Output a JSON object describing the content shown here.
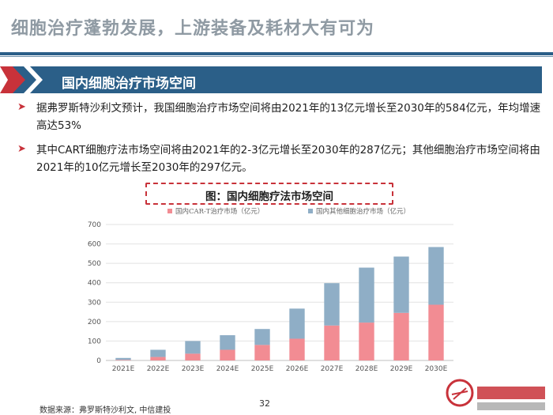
{
  "slide": {
    "title": "细胞治疗蓬勃发展，上游装备及耗材大有可为",
    "section": "国内细胞治疗市场空间",
    "bullets": [
      "据弗罗斯特沙利文预计，我国细胞治疗市场空间将由2021年的13亿元增长至2030年的584亿元，年均增速高达53%",
      "其中CART细胞疗法市场空间将由2021年的2-3亿元增长至2030年的287亿元；其他细胞治疗市场空间将由2021年的10亿元增长至2030年的297亿元。"
    ],
    "figure_title": "图：国内细胞疗法市场空间",
    "source": "数据来源：弗罗斯特沙利文, 中信建投",
    "page": "32"
  },
  "colors": {
    "cart": "#f28c93",
    "other": "#8faec6",
    "accent_red": "#c8323a",
    "banner_blue": "#2b5f88",
    "title_gray": "#8f9aa3"
  },
  "chart_data": {
    "type": "bar",
    "stacked": true,
    "categories": [
      "2021E",
      "2022E",
      "2023E",
      "2024E",
      "2025E",
      "2026E",
      "2027E",
      "2028E",
      "2029E",
      "2030E"
    ],
    "series": [
      {
        "name": "国内CAR-T治疗市场（亿元）",
        "values": [
          3,
          18,
          35,
          55,
          80,
          112,
          180,
          195,
          245,
          287
        ]
      },
      {
        "name": "国内其他细胞治疗市场（亿元）",
        "values": [
          10,
          37,
          65,
          75,
          82,
          155,
          218,
          283,
          290,
          297
        ]
      }
    ],
    "ylim": [
      0,
      700
    ],
    "yticks": [
      0,
      100,
      200,
      300,
      400,
      500,
      600,
      700
    ],
    "grid": true,
    "legend_position": "top"
  }
}
